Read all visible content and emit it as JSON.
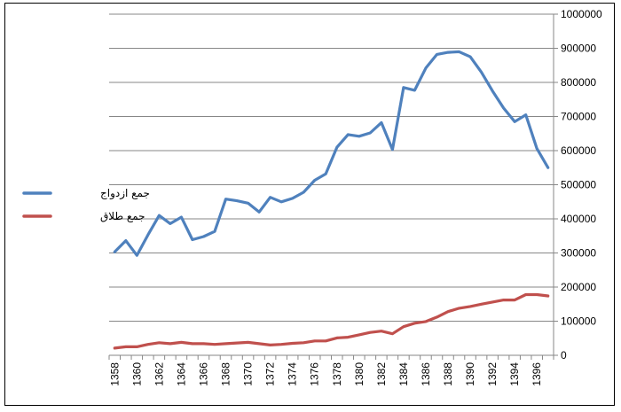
{
  "chart_data": {
    "type": "line",
    "x": [
      "1397",
      "1396",
      "1395",
      "1394",
      "1393",
      "1392",
      "1391",
      "1390",
      "1389",
      "1388",
      "1387",
      "1386",
      "1385",
      "1384",
      "1383",
      "1382",
      "1381",
      "1380",
      "1379",
      "1378",
      "1377",
      "1376",
      "1375",
      "1374",
      "1373",
      "1372",
      "1371",
      "1370",
      "1369",
      "1368",
      "1367",
      "1366",
      "1365",
      "1364",
      "1363",
      "1362",
      "1361",
      "1360",
      "1359",
      "1358"
    ],
    "x_tick_labels": [
      "1396",
      "1394",
      "1392",
      "1390",
      "1388",
      "1386",
      "1384",
      "1382",
      "1380",
      "1378",
      "1376",
      "1374",
      "1372",
      "1370",
      "1368",
      "1366",
      "1364",
      "1362",
      "1360",
      "1358"
    ],
    "series": [
      {
        "name": "جمع ازدواج",
        "color": "#4f81bd",
        "values": [
          550000,
          606000,
          705000,
          685000,
          725000,
          775000,
          830000,
          875000,
          890000,
          888000,
          882000,
          842000,
          777000,
          785000,
          603000,
          682000,
          652000,
          642000,
          647000,
          610000,
          532000,
          513000,
          478000,
          460000,
          450000,
          463000,
          420000,
          446000,
          453000,
          458000,
          363000,
          348000,
          339000,
          405000,
          386000,
          410000,
          353000,
          293000,
          336000,
          303000
        ]
      },
      {
        "name": "جمع طلاق",
        "color": "#c0504d",
        "values": [
          174000,
          178000,
          178000,
          162000,
          162000,
          156000,
          150000,
          143000,
          138000,
          128000,
          112000,
          99000,
          94000,
          84000,
          63000,
          71000,
          67000,
          60000,
          53000,
          51000,
          42000,
          42000,
          37000,
          35000,
          32000,
          30000,
          34000,
          38000,
          36000,
          34000,
          32000,
          34000,
          34000,
          38000,
          34000,
          37000,
          32000,
          25000,
          25000,
          21000
        ]
      }
    ],
    "y_tick_labels": [
      "0",
      "100000",
      "200000",
      "300000",
      "400000",
      "500000",
      "600000",
      "700000",
      "800000",
      "900000",
      "1000000"
    ],
    "ylim": [
      0,
      1000000
    ],
    "y_axis_side": "right",
    "x_reversed": true,
    "grid": true,
    "legend_position": "left",
    "title": "",
    "xlabel": "",
    "ylabel": ""
  }
}
